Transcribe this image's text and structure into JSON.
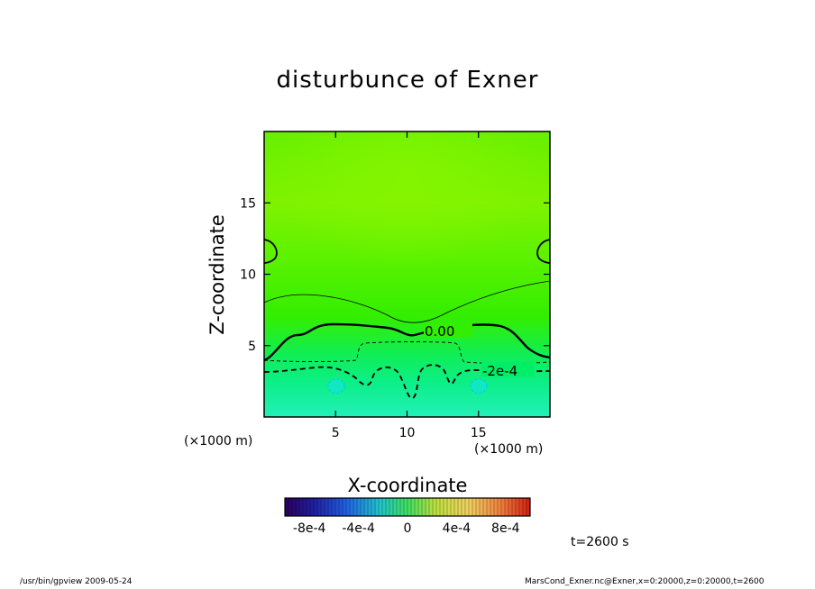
{
  "chart_data": {
    "type": "contour",
    "title": "disturbunce of Exner",
    "xlabel": "X-coordinate",
    "ylabel": "Z-coordinate",
    "x_unit": "(×1000 m)",
    "xlim": [
      0,
      20
    ],
    "ylim": [
      0,
      20
    ],
    "x_ticks": [
      5,
      10,
      15
    ],
    "y_ticks": [
      5,
      10,
      15
    ],
    "contour_labels": [
      {
        "text": "0.00",
        "x": 11.6,
        "z": 5.8
      },
      {
        "text": "-2e-4",
        "x": 16.7,
        "z": 3.1
      }
    ],
    "colorbar": {
      "min": -0.001,
      "max": 0.001,
      "tick_labels": [
        "-8e-4",
        "-4e-4",
        "0",
        "4e-4",
        "8e-4"
      ]
    },
    "colors": {
      "upper": "#7ff200",
      "middle": "#33ee00",
      "lower": "#00ee66",
      "bottom": "#11efa8"
    }
  },
  "time_label": "t=2600 s",
  "footer": {
    "left": "/usr/bin/gpview  2009-05-24",
    "right": "MarsCond_Exner.nc@Exner,x=0:20000,z=0:20000,t=2600"
  }
}
